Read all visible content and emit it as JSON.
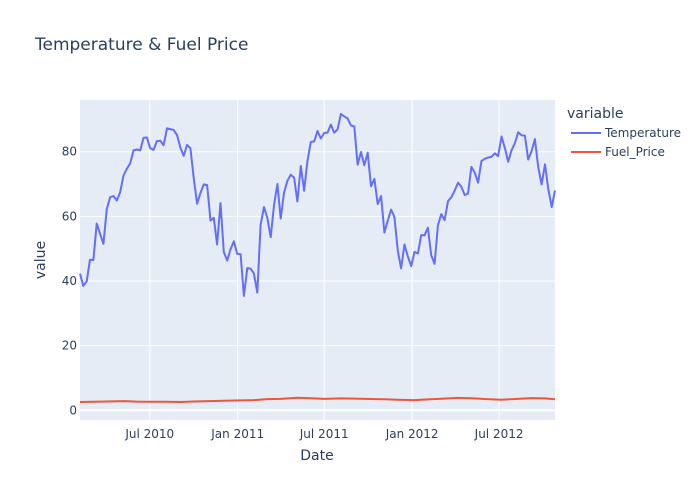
{
  "chart_data": {
    "type": "line",
    "title": "Temperature & Fuel Price",
    "xlabel": "Date",
    "ylabel": "value",
    "x_range": [
      "2010-02-05",
      "2012-10-26"
    ],
    "ylim": [
      -3,
      96
    ],
    "x_ticks": [
      {
        "date": "2010-07-01",
        "label": "Jul 2010"
      },
      {
        "date": "2011-01-01",
        "label": "Jan 2011"
      },
      {
        "date": "2011-07-01",
        "label": "Jul 2011"
      },
      {
        "date": "2012-01-01",
        "label": "Jan 2012"
      },
      {
        "date": "2012-07-01",
        "label": "Jul 2012"
      }
    ],
    "y_ticks": [
      0,
      20,
      40,
      60,
      80
    ],
    "grid": true,
    "legend": {
      "title": "variable",
      "placement": "right"
    },
    "series": [
      {
        "name": "Temperature",
        "color": "#636efa",
        "points": [
          [
            "2010-02-05",
            42.3
          ],
          [
            "2010-02-12",
            38.5
          ],
          [
            "2010-02-19",
            39.9
          ],
          [
            "2010-02-26",
            46.6
          ],
          [
            "2010-03-05",
            46.5
          ],
          [
            "2010-03-12",
            57.8
          ],
          [
            "2010-03-19",
            54.6
          ],
          [
            "2010-03-26",
            51.5
          ],
          [
            "2010-04-02",
            62.3
          ],
          [
            "2010-04-09",
            65.9
          ],
          [
            "2010-04-16",
            66.3
          ],
          [
            "2010-04-23",
            64.9
          ],
          [
            "2010-04-30",
            67.4
          ],
          [
            "2010-05-07",
            72.6
          ],
          [
            "2010-05-14",
            74.7
          ],
          [
            "2010-05-21",
            76.4
          ],
          [
            "2010-05-28",
            80.4
          ],
          [
            "2010-06-04",
            80.7
          ],
          [
            "2010-06-11",
            80.4
          ],
          [
            "2010-06-18",
            84.3
          ],
          [
            "2010-06-25",
            84.4
          ],
          [
            "2010-07-02",
            81.1
          ],
          [
            "2010-07-09",
            80.6
          ],
          [
            "2010-07-16",
            83.3
          ],
          [
            "2010-07-23",
            83.4
          ],
          [
            "2010-07-30",
            82.0
          ],
          [
            "2010-08-06",
            87.2
          ],
          [
            "2010-08-13",
            87.0
          ],
          [
            "2010-08-20",
            86.7
          ],
          [
            "2010-08-27",
            85.2
          ],
          [
            "2010-09-03",
            81.2
          ],
          [
            "2010-09-10",
            78.7
          ],
          [
            "2010-09-17",
            82.1
          ],
          [
            "2010-09-24",
            81.1
          ],
          [
            "2010-10-01",
            71.9
          ],
          [
            "2010-10-08",
            63.9
          ],
          [
            "2010-10-15",
            67.2
          ],
          [
            "2010-10-22",
            69.9
          ],
          [
            "2010-10-29",
            69.7
          ],
          [
            "2010-11-05",
            58.7
          ],
          [
            "2010-11-12",
            59.6
          ],
          [
            "2010-11-19",
            51.3
          ],
          [
            "2010-11-26",
            64.1
          ],
          [
            "2010-12-03",
            49.0
          ],
          [
            "2010-12-10",
            46.3
          ],
          [
            "2010-12-17",
            49.8
          ],
          [
            "2010-12-24",
            52.3
          ],
          [
            "2010-12-31",
            48.4
          ],
          [
            "2011-01-07",
            48.3
          ],
          [
            "2011-01-14",
            35.4
          ],
          [
            "2011-01-21",
            44.0
          ],
          [
            "2011-01-28",
            43.8
          ],
          [
            "2011-02-04",
            42.3
          ],
          [
            "2011-02-11",
            36.4
          ],
          [
            "2011-02-18",
            57.4
          ],
          [
            "2011-02-25",
            62.9
          ],
          [
            "2011-03-04",
            59.6
          ],
          [
            "2011-03-11",
            53.6
          ],
          [
            "2011-03-18",
            63.4
          ],
          [
            "2011-03-25",
            70.0
          ],
          [
            "2011-04-01",
            59.3
          ],
          [
            "2011-04-08",
            67.3
          ],
          [
            "2011-04-15",
            71.0
          ],
          [
            "2011-04-22",
            72.9
          ],
          [
            "2011-04-29",
            72.0
          ],
          [
            "2011-05-06",
            64.6
          ],
          [
            "2011-05-13",
            75.6
          ],
          [
            "2011-05-20",
            67.9
          ],
          [
            "2011-05-27",
            77.2
          ],
          [
            "2011-06-03",
            83.0
          ],
          [
            "2011-06-10",
            83.2
          ],
          [
            "2011-06-17",
            86.4
          ],
          [
            "2011-06-24",
            84.1
          ],
          [
            "2011-07-01",
            85.8
          ],
          [
            "2011-07-08",
            85.9
          ],
          [
            "2011-07-15",
            88.4
          ],
          [
            "2011-07-22",
            85.9
          ],
          [
            "2011-07-29",
            86.9
          ],
          [
            "2011-08-05",
            91.7
          ],
          [
            "2011-08-12",
            90.9
          ],
          [
            "2011-08-19",
            90.3
          ],
          [
            "2011-08-26",
            88.1
          ],
          [
            "2011-09-02",
            87.8
          ],
          [
            "2011-09-09",
            76.0
          ],
          [
            "2011-09-16",
            79.9
          ],
          [
            "2011-09-23",
            75.8
          ],
          [
            "2011-09-30",
            79.7
          ],
          [
            "2011-10-07",
            69.3
          ],
          [
            "2011-10-14",
            71.6
          ],
          [
            "2011-10-21",
            63.8
          ],
          [
            "2011-10-28",
            66.3
          ],
          [
            "2011-11-04",
            55.0
          ],
          [
            "2011-11-11",
            58.6
          ],
          [
            "2011-11-18",
            62.1
          ],
          [
            "2011-11-25",
            59.8
          ],
          [
            "2011-12-02",
            49.4
          ],
          [
            "2011-12-09",
            43.9
          ],
          [
            "2011-12-16",
            51.3
          ],
          [
            "2011-12-23",
            47.6
          ],
          [
            "2011-12-30",
            44.6
          ],
          [
            "2012-01-06",
            49.0
          ],
          [
            "2012-01-13",
            48.5
          ],
          [
            "2012-01-20",
            54.2
          ],
          [
            "2012-01-27",
            54.1
          ],
          [
            "2012-02-03",
            56.5
          ],
          [
            "2012-02-10",
            48.0
          ],
          [
            "2012-02-17",
            45.3
          ],
          [
            "2012-02-24",
            57.2
          ],
          [
            "2012-03-02",
            60.7
          ],
          [
            "2012-03-09",
            58.8
          ],
          [
            "2012-03-16",
            64.7
          ],
          [
            "2012-03-23",
            65.9
          ],
          [
            "2012-03-30",
            67.9
          ],
          [
            "2012-04-06",
            70.4
          ],
          [
            "2012-04-13",
            69.2
          ],
          [
            "2012-04-20",
            66.6
          ],
          [
            "2012-04-27",
            67.0
          ],
          [
            "2012-05-04",
            75.3
          ],
          [
            "2012-05-11",
            73.6
          ],
          [
            "2012-05-18",
            70.4
          ],
          [
            "2012-05-25",
            77.1
          ],
          [
            "2012-06-01",
            77.8
          ],
          [
            "2012-06-08",
            78.2
          ],
          [
            "2012-06-15",
            78.4
          ],
          [
            "2012-06-22",
            79.5
          ],
          [
            "2012-06-29",
            78.6
          ],
          [
            "2012-07-06",
            84.7
          ],
          [
            "2012-07-13",
            81.2
          ],
          [
            "2012-07-20",
            76.9
          ],
          [
            "2012-07-27",
            80.4
          ],
          [
            "2012-08-03",
            82.7
          ],
          [
            "2012-08-10",
            86.0
          ],
          [
            "2012-08-17",
            85.1
          ],
          [
            "2012-08-24",
            85.0
          ],
          [
            "2012-08-31",
            77.6
          ],
          [
            "2012-09-07",
            80.2
          ],
          [
            "2012-09-14",
            83.9
          ],
          [
            "2012-09-21",
            75.1
          ],
          [
            "2012-09-28",
            69.9
          ],
          [
            "2012-10-05",
            76.1
          ],
          [
            "2012-10-12",
            68.4
          ],
          [
            "2012-10-19",
            62.9
          ],
          [
            "2012-10-26",
            68.0
          ]
        ]
      },
      {
        "name": "Fuel_Price",
        "color": "#ef553b",
        "points": [
          [
            "2010-02-05",
            2.57
          ],
          [
            "2010-03-05",
            2.63
          ],
          [
            "2010-04-02",
            2.72
          ],
          [
            "2010-05-07",
            2.85
          ],
          [
            "2010-06-04",
            2.69
          ],
          [
            "2010-07-02",
            2.67
          ],
          [
            "2010-08-06",
            2.64
          ],
          [
            "2010-09-03",
            2.58
          ],
          [
            "2010-10-01",
            2.71
          ],
          [
            "2010-11-05",
            2.85
          ],
          [
            "2010-12-03",
            2.94
          ],
          [
            "2011-01-07",
            3.06
          ],
          [
            "2011-02-04",
            3.15
          ],
          [
            "2011-03-04",
            3.46
          ],
          [
            "2011-04-01",
            3.52
          ],
          [
            "2011-05-06",
            3.86
          ],
          [
            "2011-06-03",
            3.72
          ],
          [
            "2011-07-01",
            3.52
          ],
          [
            "2011-08-05",
            3.68
          ],
          [
            "2011-09-02",
            3.62
          ],
          [
            "2011-10-07",
            3.49
          ],
          [
            "2011-11-04",
            3.41
          ],
          [
            "2011-12-02",
            3.29
          ],
          [
            "2012-01-06",
            3.16
          ],
          [
            "2012-02-03",
            3.37
          ],
          [
            "2012-03-02",
            3.6
          ],
          [
            "2012-04-06",
            3.83
          ],
          [
            "2012-05-04",
            3.72
          ],
          [
            "2012-06-01",
            3.5
          ],
          [
            "2012-07-06",
            3.29
          ],
          [
            "2012-08-03",
            3.49
          ],
          [
            "2012-09-07",
            3.78
          ],
          [
            "2012-10-05",
            3.68
          ],
          [
            "2012-10-26",
            3.45
          ]
        ]
      }
    ]
  }
}
